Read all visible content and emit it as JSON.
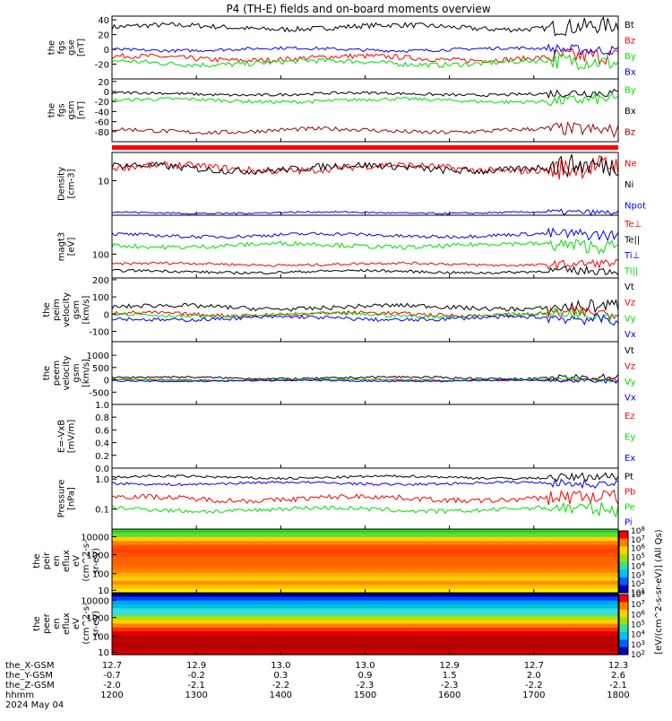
{
  "title": "P4 (TH-E) fields and on-board moments overview",
  "colors": {
    "black": "#000000",
    "red": "#ff0000",
    "green": "#00e000",
    "blue": "#0000ff",
    "darkred": "#a00000"
  },
  "footer": {
    "rows": [
      {
        "label": "the_X-GSM",
        "values": [
          "12.7",
          "12.9",
          "13.0",
          "13.0",
          "12.9",
          "12.7",
          "12.3"
        ]
      },
      {
        "label": "the_Y-GSM",
        "values": [
          "-0.7",
          "-0.2",
          "0.3",
          "0.9",
          "1.5",
          "2.0",
          "2.6"
        ]
      },
      {
        "label": "the_Z-GSM",
        "values": [
          "-2.0",
          "-2.1",
          "-2.2",
          "-2.3",
          "-2.3",
          "-2.2",
          "-2.1"
        ]
      },
      {
        "label": "hhmm",
        "values": [
          "1200",
          "1300",
          "1400",
          "1500",
          "1600",
          "1700",
          "1800"
        ]
      }
    ],
    "date": "2024 May 04"
  },
  "colorbar_label": "[eV/(cm^2-s-sr-eV)] (All Qs)",
  "chart_data": [
    {
      "id": "fgs_gse",
      "type": "line",
      "ylabel": [
        "the",
        "fgs",
        "gse",
        "[nT]"
      ],
      "ylim": [
        -40,
        45
      ],
      "yticks": [
        "40",
        "20",
        "0",
        "-20"
      ],
      "ytick_values": [
        40,
        20,
        0,
        -20
      ],
      "series": [
        {
          "name": "Bt",
          "color": "#000000",
          "base": 30,
          "amp": 5
        },
        {
          "name": "Bz",
          "color": "#ff0000",
          "base": -12,
          "amp": 5
        },
        {
          "name": "By",
          "color": "#00e000",
          "base": -18,
          "amp": 5
        },
        {
          "name": "Bx",
          "color": "#0000ff",
          "base": 0,
          "amp": 3
        }
      ]
    },
    {
      "id": "fgs_gsm",
      "type": "line",
      "ylabel": [
        "the",
        "fgs",
        "gsm",
        "[nT]"
      ],
      "ylim": [
        -100,
        25
      ],
      "yticks": [
        "20",
        "0",
        "-20",
        "-40",
        "-60",
        "-80"
      ],
      "ytick_values": [
        20,
        0,
        -20,
        -40,
        -60,
        -80
      ],
      "series": [
        {
          "name": "By",
          "color": "#00e000",
          "base": -18,
          "amp": 5
        },
        {
          "name": "Bx",
          "color": "#000000",
          "base": -5,
          "amp": 4
        },
        {
          "name": "Bz",
          "color": "#a00000",
          "base": -78,
          "amp": 6
        }
      ]
    },
    {
      "id": "density",
      "type": "line",
      "ylabel": [
        "Density",
        "[cm-3]"
      ],
      "ylim": [
        0,
        1
      ],
      "yticks": [
        "10"
      ],
      "ytick_values": [
        0.55
      ],
      "series": [
        {
          "name": "Ne",
          "color": "#ff0000",
          "base": 0.75,
          "amp": 0.08
        },
        {
          "name": "Ni",
          "color": "#000000",
          "base": 0.75,
          "amp": 0.08
        },
        {
          "name": "Npot",
          "color": "#0000ff",
          "base": 0.04,
          "amp": 0.02
        }
      ]
    },
    {
      "id": "temp",
      "type": "line",
      "ylabel": [
        "magt3",
        "[eV]"
      ],
      "ylim": [
        0,
        1
      ],
      "yticks": [
        "100"
      ],
      "ytick_values": [
        0.38
      ],
      "series": [
        {
          "name": "Te⊥",
          "color": "#ff0000",
          "base": 0.22,
          "amp": 0.03
        },
        {
          "name": "Te||",
          "color": "#000000",
          "base": 0.1,
          "amp": 0.03
        },
        {
          "name": "Ti⊥",
          "color": "#0000ff",
          "base": 0.68,
          "amp": 0.04
        },
        {
          "name": "Ti||",
          "color": "#00e000",
          "base": 0.52,
          "amp": 0.05
        }
      ]
    },
    {
      "id": "peim_vel",
      "type": "line",
      "ylabel": [
        "the",
        "peim",
        "velocity",
        "gsm",
        "[km/s]"
      ],
      "ylim": [
        -160,
        210
      ],
      "yticks": [
        "200",
        "100",
        "0",
        "-100"
      ],
      "ytick_values": [
        200,
        100,
        0,
        -100
      ],
      "series": [
        {
          "name": "Vt",
          "color": "#000000",
          "base": 40,
          "amp": 18
        },
        {
          "name": "Vz",
          "color": "#ff0000",
          "base": 0,
          "amp": 15
        },
        {
          "name": "Vy",
          "color": "#00e000",
          "base": -5,
          "amp": 15
        },
        {
          "name": "Vx",
          "color": "#0000ff",
          "base": -25,
          "amp": 15
        }
      ]
    },
    {
      "id": "peem_vel",
      "type": "line",
      "ylabel": [
        "the",
        "peem",
        "velocity",
        "gsm",
        "[km/s]"
      ],
      "ylim": [
        -1000,
        1550
      ],
      "yticks": [
        "1000",
        "500",
        "0",
        "-500"
      ],
      "ytick_values": [
        1000,
        500,
        0,
        -500
      ],
      "series": [
        {
          "name": "Vt",
          "color": "#000000",
          "base": 80,
          "amp": 60
        },
        {
          "name": "Vz",
          "color": "#ff0000",
          "base": -10,
          "amp": 40
        },
        {
          "name": "Vy",
          "color": "#00e000",
          "base": -10,
          "amp": 40
        },
        {
          "name": "Vx",
          "color": "#0000ff",
          "base": -40,
          "amp": 40
        }
      ]
    },
    {
      "id": "efield",
      "type": "line",
      "ylabel": [
        "E=-VxB",
        "[mV/m]"
      ],
      "ylim": [
        0,
        1
      ],
      "yticks": [
        "1.0",
        "0.8",
        "0.6",
        "0.4",
        "0.2",
        "0.0"
      ],
      "ytick_values": [
        1,
        0.8,
        0.6,
        0.4,
        0.2,
        0
      ],
      "series": [
        {
          "name": "Ez",
          "color": "#ff0000"
        },
        {
          "name": "Ey",
          "color": "#00e000"
        },
        {
          "name": "Ex",
          "color": "#0000ff"
        }
      ]
    },
    {
      "id": "pressure",
      "type": "line",
      "ylabel": [
        "Pressure",
        "[nPa]"
      ],
      "ylim": [
        0,
        1
      ],
      "yticks": [
        "1.0",
        "0.1"
      ],
      "ytick_values": [
        0.82,
        0.33
      ],
      "series": [
        {
          "name": "Pt",
          "color": "#000000",
          "base": 0.85,
          "amp": 0.03
        },
        {
          "name": "Pb",
          "color": "#ff0000",
          "base": 0.5,
          "amp": 0.06
        },
        {
          "name": "Pe",
          "color": "#00e000",
          "base": 0.32,
          "amp": 0.05
        },
        {
          "name": "Pi",
          "color": "#0000ff",
          "base": 0.75,
          "amp": 0.03
        }
      ]
    },
    {
      "id": "peir_flux",
      "type": "heatmap",
      "ylabel": [
        "the",
        "peir",
        "en",
        "eflux",
        "eV",
        "(cm^2-s-",
        "sr-eV)"
      ],
      "yticks": [
        "10000",
        "1000",
        "100",
        "10"
      ],
      "ytick_values": [
        0.12,
        0.4,
        0.7,
        0.96
      ]
    },
    {
      "id": "peer_flux",
      "type": "heatmap",
      "ylabel": [
        "the",
        "peer",
        "en",
        "eflux",
        "eV",
        "(cm^2-s-",
        "sr-eV)"
      ],
      "yticks": [
        "10000",
        "1000",
        "100",
        "10"
      ],
      "ytick_values": [
        0.12,
        0.4,
        0.7,
        0.96
      ]
    }
  ],
  "colorbars": [
    {
      "ticks": [
        "10^8",
        "10^7",
        "10^6",
        "10^5",
        "10^4",
        "10^3",
        "10^2",
        "10^1"
      ]
    },
    {
      "ticks": [
        "10^8",
        "10^7",
        "10^6",
        "10^5",
        "10^4",
        "10^3",
        "10^2"
      ]
    }
  ]
}
